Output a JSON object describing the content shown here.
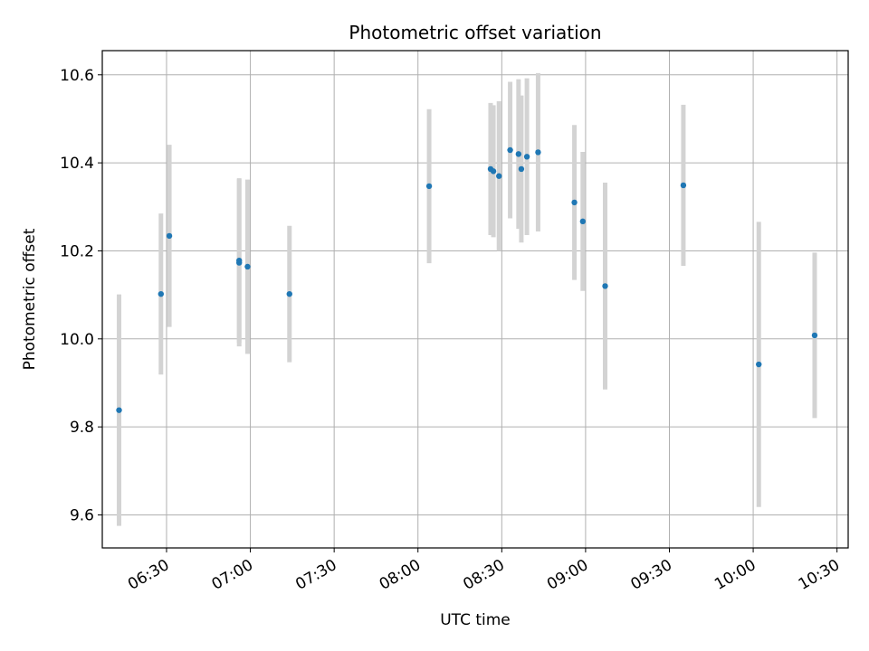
{
  "chart_data": {
    "type": "scatter",
    "title": "Photometric offset variation",
    "xlabel": "UTC time",
    "ylabel": "Photometric offset",
    "x_ticks": [
      "06:30",
      "07:00",
      "07:30",
      "08:00",
      "08:30",
      "09:00",
      "09:30",
      "10:00",
      "10:30"
    ],
    "xlim": [
      "06:07",
      "10:34"
    ],
    "y_ticks": [
      "9.6",
      "9.8",
      "10.0",
      "10.2",
      "10.4",
      "10.6"
    ],
    "ylim": [
      9.525,
      10.655
    ],
    "grid": true,
    "marker_color": "#1f77b4",
    "errorbar_color": "#d3d3d3",
    "points": [
      {
        "time": "06:13",
        "y": 9.838,
        "yerr": 0.263
      },
      {
        "time": "06:28",
        "y": 10.102,
        "yerr": 0.183
      },
      {
        "time": "06:31",
        "y": 10.234,
        "yerr": 0.207
      },
      {
        "time": "06:56",
        "y": 10.178,
        "yerr": 0.187
      },
      {
        "time": "06:56",
        "y": 10.173,
        "yerr": 0.19
      },
      {
        "time": "06:59",
        "y": 10.164,
        "yerr": 0.198
      },
      {
        "time": "07:14",
        "y": 10.102,
        "yerr": 0.155
      },
      {
        "time": "08:04",
        "y": 10.347,
        "yerr": 0.175
      },
      {
        "time": "08:26",
        "y": 10.386,
        "yerr": 0.15
      },
      {
        "time": "08:27",
        "y": 10.381,
        "yerr": 0.15
      },
      {
        "time": "08:29",
        "y": 10.37,
        "yerr": 0.17
      },
      {
        "time": "08:33",
        "y": 10.429,
        "yerr": 0.155
      },
      {
        "time": "08:36",
        "y": 10.42,
        "yerr": 0.17
      },
      {
        "time": "08:37",
        "y": 10.386,
        "yerr": 0.167
      },
      {
        "time": "08:39",
        "y": 10.414,
        "yerr": 0.178
      },
      {
        "time": "08:43",
        "y": 10.424,
        "yerr": 0.18
      },
      {
        "time": "08:56",
        "y": 10.31,
        "yerr": 0.176
      },
      {
        "time": "08:59",
        "y": 10.267,
        "yerr": 0.158
      },
      {
        "time": "09:07",
        "y": 10.12,
        "yerr": 0.235
      },
      {
        "time": "09:35",
        "y": 10.349,
        "yerr": 0.183
      },
      {
        "time": "10:02",
        "y": 9.942,
        "yerr": 0.324
      },
      {
        "time": "10:22",
        "y": 10.008,
        "yerr": 0.188
      }
    ]
  }
}
